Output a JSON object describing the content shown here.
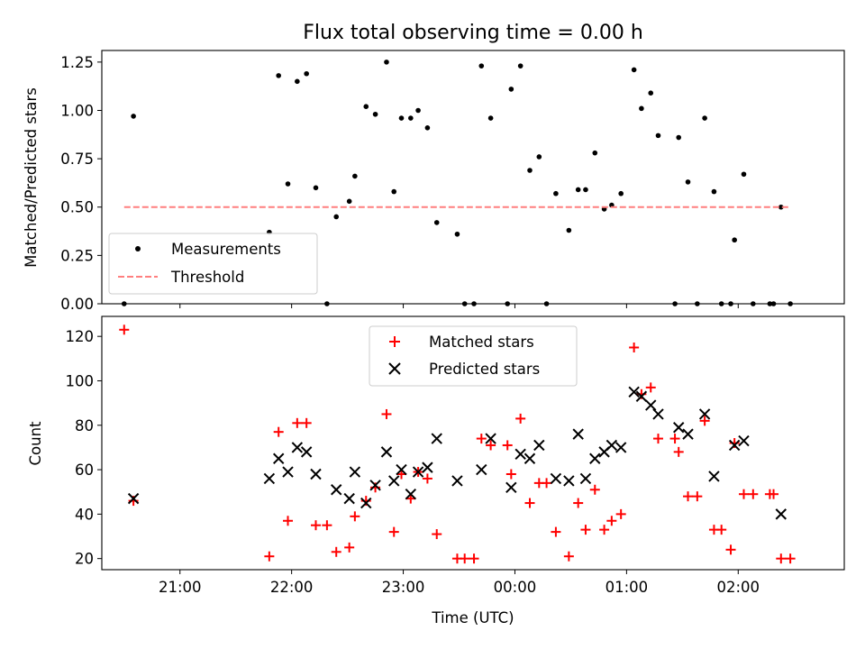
{
  "chart_data": [
    {
      "type": "scatter",
      "title": "Flux total observing time = 0.00 h",
      "xlabel": "",
      "ylabel": "Matched/Predicted stars",
      "xlim": [
        "20:18",
        "02:57"
      ],
      "ylim": [
        0,
        1.31
      ],
      "yticks": [
        0.0,
        0.25,
        0.5,
        0.75,
        1.0,
        1.25
      ],
      "ytick_labels": [
        "0.00",
        "0.25",
        "0.50",
        "0.75",
        "1.00",
        "1.25"
      ],
      "legend": {
        "placement": "lower-left"
      },
      "series": [
        {
          "name": "Measurements",
          "marker": "dot",
          "color": "#000000",
          "points": [
            [
              "20:30",
              0.0
            ],
            [
              "20:35",
              0.97
            ],
            [
              "21:48",
              0.37
            ],
            [
              "21:53",
              1.18
            ],
            [
              "21:58",
              0.62
            ],
            [
              "22:03",
              1.15
            ],
            [
              "22:08",
              1.19
            ],
            [
              "22:13",
              0.6
            ],
            [
              "22:19",
              0.0
            ],
            [
              "22:24",
              0.45
            ],
            [
              "22:31",
              0.53
            ],
            [
              "22:34",
              0.66
            ],
            [
              "22:40",
              1.02
            ],
            [
              "22:45",
              0.98
            ],
            [
              "22:51",
              1.25
            ],
            [
              "22:55",
              0.58
            ],
            [
              "22:59",
              0.96
            ],
            [
              "23:04",
              0.96
            ],
            [
              "23:08",
              1.0
            ],
            [
              "23:13",
              0.91
            ],
            [
              "23:18",
              0.42
            ],
            [
              "23:29",
              0.36
            ],
            [
              "23:33",
              0.0
            ],
            [
              "23:38",
              0.0
            ],
            [
              "23:42",
              1.23
            ],
            [
              "23:47",
              0.96
            ],
            [
              "23:56",
              0.0
            ],
            [
              "23:58",
              1.11
            ],
            [
              "00:03",
              1.23
            ],
            [
              "00:08",
              0.69
            ],
            [
              "00:13",
              0.76
            ],
            [
              "00:17",
              0.0
            ],
            [
              "00:22",
              0.57
            ],
            [
              "00:29",
              0.38
            ],
            [
              "00:34",
              0.59
            ],
            [
              "00:38",
              0.59
            ],
            [
              "00:43",
              0.78
            ],
            [
              "00:48",
              0.49
            ],
            [
              "00:52",
              0.51
            ],
            [
              "00:57",
              0.57
            ],
            [
              "01:04",
              1.21
            ],
            [
              "01:08",
              1.01
            ],
            [
              "01:13",
              1.09
            ],
            [
              "01:17",
              0.87
            ],
            [
              "01:26",
              0.0
            ],
            [
              "01:28",
              0.86
            ],
            [
              "01:33",
              0.63
            ],
            [
              "01:38",
              0.0
            ],
            [
              "01:42",
              0.96
            ],
            [
              "01:47",
              0.58
            ],
            [
              "01:51",
              0.0
            ],
            [
              "01:56",
              0.0
            ],
            [
              "01:58",
              0.33
            ],
            [
              "02:03",
              0.67
            ],
            [
              "02:08",
              0.0
            ],
            [
              "02:17",
              0.0
            ],
            [
              "02:19",
              0.0
            ],
            [
              "02:23",
              0.5
            ],
            [
              "02:28",
              0.0
            ]
          ]
        },
        {
          "name": "Threshold",
          "marker": "dashed-line",
          "color": "#ff7f7f",
          "points": [
            [
              "20:30",
              0.5
            ],
            [
              "02:28",
              0.5
            ]
          ]
        }
      ]
    },
    {
      "type": "scatter",
      "title": "",
      "xlabel": "Time (UTC)",
      "ylabel": "Count",
      "xlim": [
        "20:18",
        "02:57"
      ],
      "ylim": [
        15,
        129
      ],
      "xticks": [
        "21:00",
        "22:00",
        "23:00",
        "00:00",
        "01:00",
        "02:00"
      ],
      "yticks": [
        20,
        40,
        60,
        80,
        100,
        120
      ],
      "legend": {
        "placement": "top-center"
      },
      "series": [
        {
          "name": "Matched stars",
          "marker": "plus",
          "color": "#ff0000",
          "points": [
            [
              "20:30",
              123
            ],
            [
              "20:35",
              46
            ],
            [
              "21:48",
              21
            ],
            [
              "21:53",
              77
            ],
            [
              "21:58",
              37
            ],
            [
              "22:03",
              81
            ],
            [
              "22:08",
              81
            ],
            [
              "22:13",
              35
            ],
            [
              "22:19",
              35
            ],
            [
              "22:24",
              23
            ],
            [
              "22:31",
              25
            ],
            [
              "22:34",
              39
            ],
            [
              "22:40",
              46
            ],
            [
              "22:45",
              52
            ],
            [
              "22:51",
              85
            ],
            [
              "22:55",
              32
            ],
            [
              "22:59",
              58
            ],
            [
              "23:04",
              47
            ],
            [
              "23:08",
              59
            ],
            [
              "23:13",
              56
            ],
            [
              "23:18",
              31
            ],
            [
              "23:29",
              20
            ],
            [
              "23:33",
              20
            ],
            [
              "23:38",
              20
            ],
            [
              "23:42",
              74
            ],
            [
              "23:47",
              71
            ],
            [
              "23:56",
              71
            ],
            [
              "23:58",
              58
            ],
            [
              "00:03",
              83
            ],
            [
              "00:08",
              45
            ],
            [
              "00:13",
              54
            ],
            [
              "00:17",
              54
            ],
            [
              "00:22",
              32
            ],
            [
              "00:29",
              21
            ],
            [
              "00:34",
              45
            ],
            [
              "00:38",
              33
            ],
            [
              "00:43",
              51
            ],
            [
              "00:48",
              33
            ],
            [
              "00:52",
              37
            ],
            [
              "00:57",
              40
            ],
            [
              "01:04",
              115
            ],
            [
              "01:08",
              94
            ],
            [
              "01:13",
              97
            ],
            [
              "01:17",
              74
            ],
            [
              "01:26",
              74
            ],
            [
              "01:28",
              68
            ],
            [
              "01:33",
              48
            ],
            [
              "01:38",
              48
            ],
            [
              "01:42",
              82
            ],
            [
              "01:47",
              33
            ],
            [
              "01:51",
              33
            ],
            [
              "01:56",
              24
            ],
            [
              "01:58",
              72
            ],
            [
              "02:03",
              49
            ],
            [
              "02:08",
              49
            ],
            [
              "02:17",
              49
            ],
            [
              "02:19",
              49
            ],
            [
              "02:23",
              20
            ],
            [
              "02:28",
              20
            ]
          ]
        },
        {
          "name": "Predicted stars",
          "marker": "x",
          "color": "#000000",
          "points": [
            [
              "20:35",
              47
            ],
            [
              "21:48",
              56
            ],
            [
              "21:53",
              65
            ],
            [
              "21:58",
              59
            ],
            [
              "22:03",
              70
            ],
            [
              "22:08",
              68
            ],
            [
              "22:13",
              58
            ],
            [
              "22:24",
              51
            ],
            [
              "22:31",
              47
            ],
            [
              "22:34",
              59
            ],
            [
              "22:40",
              45
            ],
            [
              "22:45",
              53
            ],
            [
              "22:51",
              68
            ],
            [
              "22:55",
              55
            ],
            [
              "22:59",
              60
            ],
            [
              "23:04",
              49
            ],
            [
              "23:08",
              59
            ],
            [
              "23:13",
              61
            ],
            [
              "23:18",
              74
            ],
            [
              "23:29",
              55
            ],
            [
              "23:42",
              60
            ],
            [
              "23:47",
              74
            ],
            [
              "23:58",
              52
            ],
            [
              "00:03",
              67
            ],
            [
              "00:08",
              65
            ],
            [
              "00:13",
              71
            ],
            [
              "00:22",
              56
            ],
            [
              "00:29",
              55
            ],
            [
              "00:34",
              76
            ],
            [
              "00:38",
              56
            ],
            [
              "00:43",
              65
            ],
            [
              "00:48",
              68
            ],
            [
              "00:52",
              71
            ],
            [
              "00:57",
              70
            ],
            [
              "01:04",
              95
            ],
            [
              "01:08",
              93
            ],
            [
              "01:13",
              89
            ],
            [
              "01:17",
              85
            ],
            [
              "01:28",
              79
            ],
            [
              "01:33",
              76
            ],
            [
              "01:42",
              85
            ],
            [
              "01:47",
              57
            ],
            [
              "01:58",
              71
            ],
            [
              "02:03",
              73
            ],
            [
              "02:23",
              40
            ]
          ]
        }
      ]
    }
  ]
}
